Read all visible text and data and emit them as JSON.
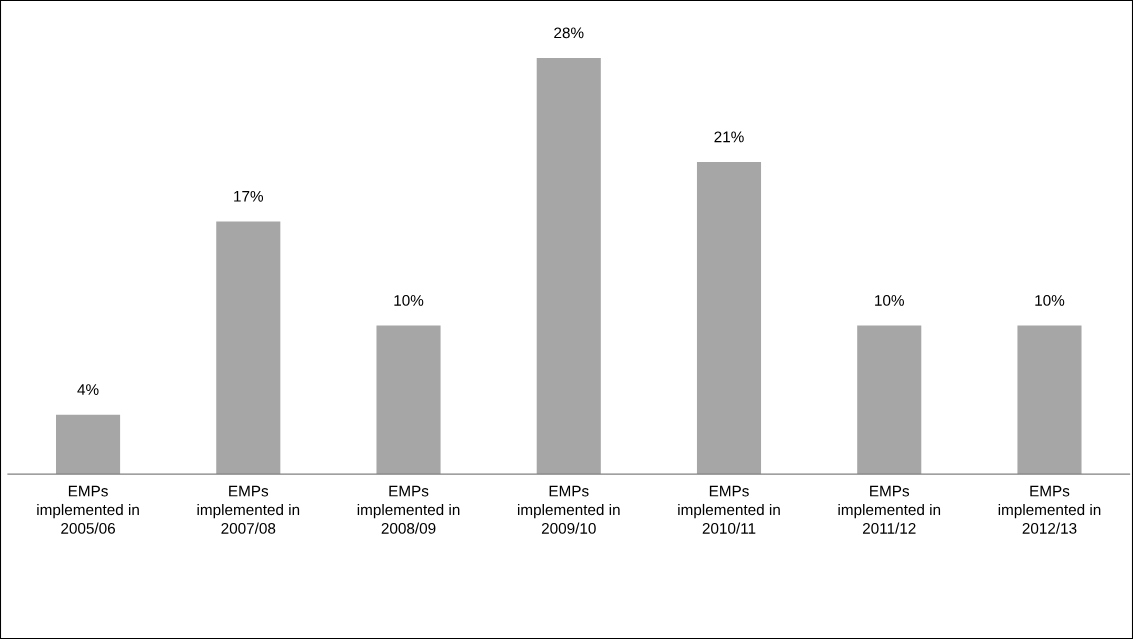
{
  "chart_data": {
    "type": "bar",
    "categories": [
      "EMPs\nimplemented in\n2005/06",
      "EMPs\nimplemented in\n2007/08",
      "EMPs\nimplemented in\n2008/09",
      "EMPs\nimplemented in\n2009/10",
      "EMPs\nimplemented in\n2010/11",
      "EMPs\nimplemented in\n2011/12",
      "EMPs\nimplemented in\n2012/13"
    ],
    "values": [
      4,
      17,
      10,
      28,
      21,
      10,
      10
    ],
    "value_labels": [
      "4%",
      "17%",
      "10%",
      "28%",
      "21%",
      "10%",
      "10%"
    ],
    "color": "#a6a6a6",
    "grid": false,
    "legend": false
  }
}
